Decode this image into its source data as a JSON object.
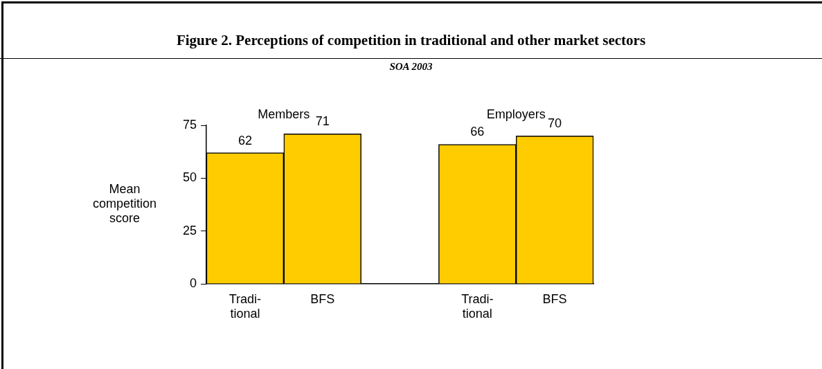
{
  "chart_data": {
    "type": "bar",
    "title": "Figure 2. Perceptions of competition in traditional and other market sectors",
    "subtitle": "SOA 2003",
    "ylabel": "Mean competition score",
    "categories": [
      "Tradi-\ntional",
      "BFS",
      null,
      "Tradi-\ntional",
      "BFS"
    ],
    "values": [
      62,
      71,
      null,
      66,
      70
    ],
    "color": "#ffcc00",
    "ylim": [
      0,
      75
    ],
    "yticks": [
      0,
      25,
      50,
      75
    ],
    "grid": false,
    "legend": false,
    "data_labels": true,
    "annotations": [
      "Members",
      "Employers"
    ]
  }
}
